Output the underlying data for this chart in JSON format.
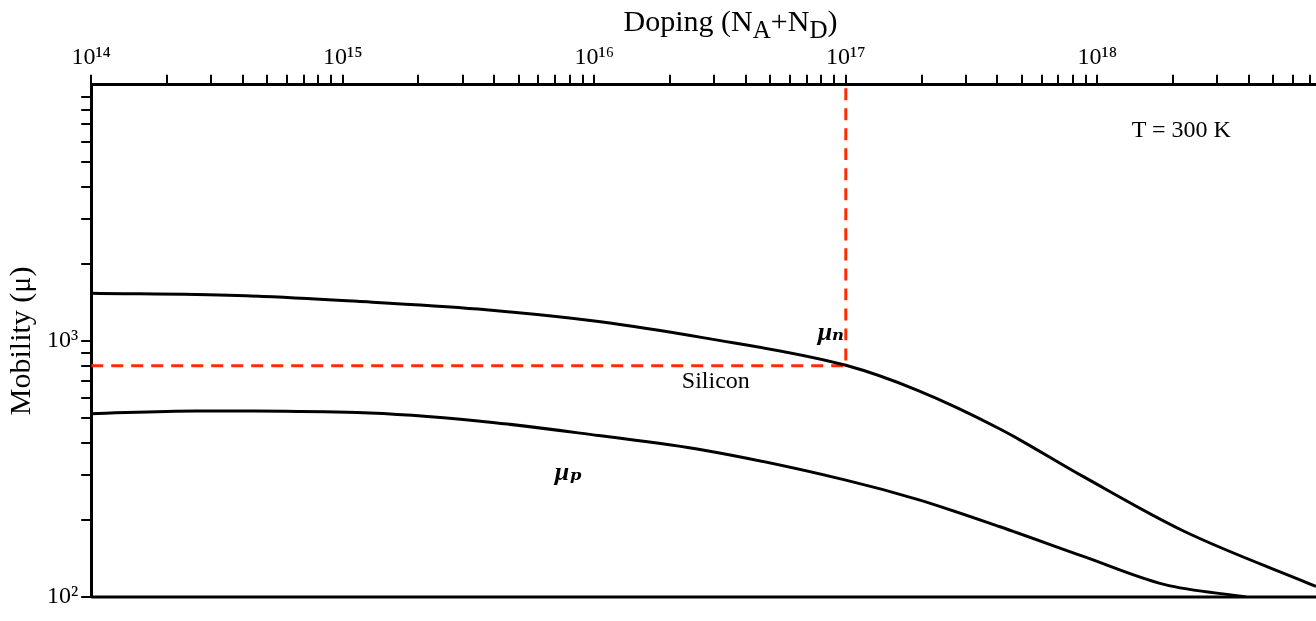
{
  "chart_data": {
    "type": "line",
    "xlabel": "Doping (N$_{A}$+N$_{D}$)",
    "ylabel": "Mobility (μ)",
    "log": "xy",
    "grid": false,
    "legend": false,
    "marker": "none",
    "xlim": [
      100000000000000.0,
      7.4e+18
    ],
    "ylim": [
      100,
      10000
    ],
    "xticks": [
      {
        "value": 100000000000000.0,
        "label": "10¹⁴"
      },
      {
        "value": 200000000000000.0,
        "label": null
      },
      {
        "value": 300000000000000.0,
        "label": null
      },
      {
        "value": 400000000000000.0,
        "label": null
      },
      {
        "value": 500000000000000.0,
        "label": null
      },
      {
        "value": 600000000000000.0,
        "label": null
      },
      {
        "value": 700000000000000.0,
        "label": null
      },
      {
        "value": 800000000000000.0,
        "label": null
      },
      {
        "value": 900000000000000.0,
        "label": null
      },
      {
        "value": 1000000000000000.0,
        "label": "10¹⁵"
      },
      {
        "value": 2000000000000000.0,
        "label": null
      },
      {
        "value": 3000000000000000.0,
        "label": null
      },
      {
        "value": 4000000000000000.0,
        "label": null
      },
      {
        "value": 5000000000000000.0,
        "label": null
      },
      {
        "value": 6000000000000000.0,
        "label": null
      },
      {
        "value": 7000000000000000.0,
        "label": null
      },
      {
        "value": 8000000000000000.0,
        "label": null
      },
      {
        "value": 9000000000000000.0,
        "label": null
      },
      {
        "value": 1e+16,
        "label": "10¹⁶"
      },
      {
        "value": 2e+16,
        "label": null
      },
      {
        "value": 3e+16,
        "label": null
      },
      {
        "value": 4e+16,
        "label": null
      },
      {
        "value": 5e+16,
        "label": null
      },
      {
        "value": 6e+16,
        "label": null
      },
      {
        "value": 7e+16,
        "label": null
      },
      {
        "value": 8e+16,
        "label": null
      },
      {
        "value": 9e+16,
        "label": null
      },
      {
        "value": 1e+17,
        "label": "10¹⁷"
      },
      {
        "value": 2e+17,
        "label": null
      },
      {
        "value": 3e+17,
        "label": null
      },
      {
        "value": 4e+17,
        "label": null
      },
      {
        "value": 5e+17,
        "label": null
      },
      {
        "value": 6e+17,
        "label": null
      },
      {
        "value": 7e+17,
        "label": null
      },
      {
        "value": 8e+17,
        "label": null
      },
      {
        "value": 9e+17,
        "label": null
      },
      {
        "value": 1e+18,
        "label": "10¹⁸"
      },
      {
        "value": 2e+18,
        "label": null
      },
      {
        "value": 3e+18,
        "label": null
      },
      {
        "value": 4e+18,
        "label": null
      },
      {
        "value": 5e+18,
        "label": null
      },
      {
        "value": 6e+18,
        "label": null
      },
      {
        "value": 7e+18,
        "label": null
      }
    ],
    "yticks": [
      {
        "value": 100,
        "label": "10²"
      },
      {
        "value": 200,
        "label": null
      },
      {
        "value": 300,
        "label": null
      },
      {
        "value": 400,
        "label": null
      },
      {
        "value": 500,
        "label": null
      },
      {
        "value": 600,
        "label": null
      },
      {
        "value": 700,
        "label": null
      },
      {
        "value": 800,
        "label": null
      },
      {
        "value": 900,
        "label": null
      },
      {
        "value": 1000,
        "label": "10³"
      },
      {
        "value": 2000,
        "label": null
      },
      {
        "value": 3000,
        "label": null
      },
      {
        "value": 4000,
        "label": null
      },
      {
        "value": 5000,
        "label": null
      },
      {
        "value": 6000,
        "label": null
      },
      {
        "value": 7000,
        "label": null
      },
      {
        "value": 8000,
        "label": null
      },
      {
        "value": 9000,
        "label": null
      }
    ],
    "series": [
      {
        "name": "μₙ",
        "color": "#000000",
        "x": [
          100000000000000.0,
          380000000000000.0,
          1140000000000000.0,
          3450000000000000.0,
          1.04e+16,
          2.7e+16,
          1e+17,
          1.94e+17,
          4.1e+17,
          8.8e+17,
          2.2e+18,
          7.4e+18
        ],
        "values": [
          1535,
          1505,
          1427,
          1331,
          1191,
          1030,
          803,
          640,
          453,
          295,
          181,
          110
        ]
      },
      {
        "name": "μₚ",
        "color": "#000000",
        "x": [
          100000000000000.0,
          260000000000000.0,
          1140000000000000.0,
          3450000000000000.0,
          1.04e+16,
          2.7e+16,
          1e+17,
          1.94e+17,
          4.1e+17,
          8.8e+17,
          1.84e+18,
          3.9e+18
        ],
        "values": [
          520,
          533,
          525,
          487,
          427,
          375,
          286,
          240,
          188,
          144,
          112,
          100
        ]
      },
      {
        "color": "#ff2a00",
        "line_style": "dashed",
        "x": [
          100000000000000.0,
          1e+17,
          1e+17
        ],
        "values": [
          800,
          800,
          10000
        ]
      }
    ],
    "annotations": [
      "T = 300 K",
      "Silicon"
    ]
  }
}
